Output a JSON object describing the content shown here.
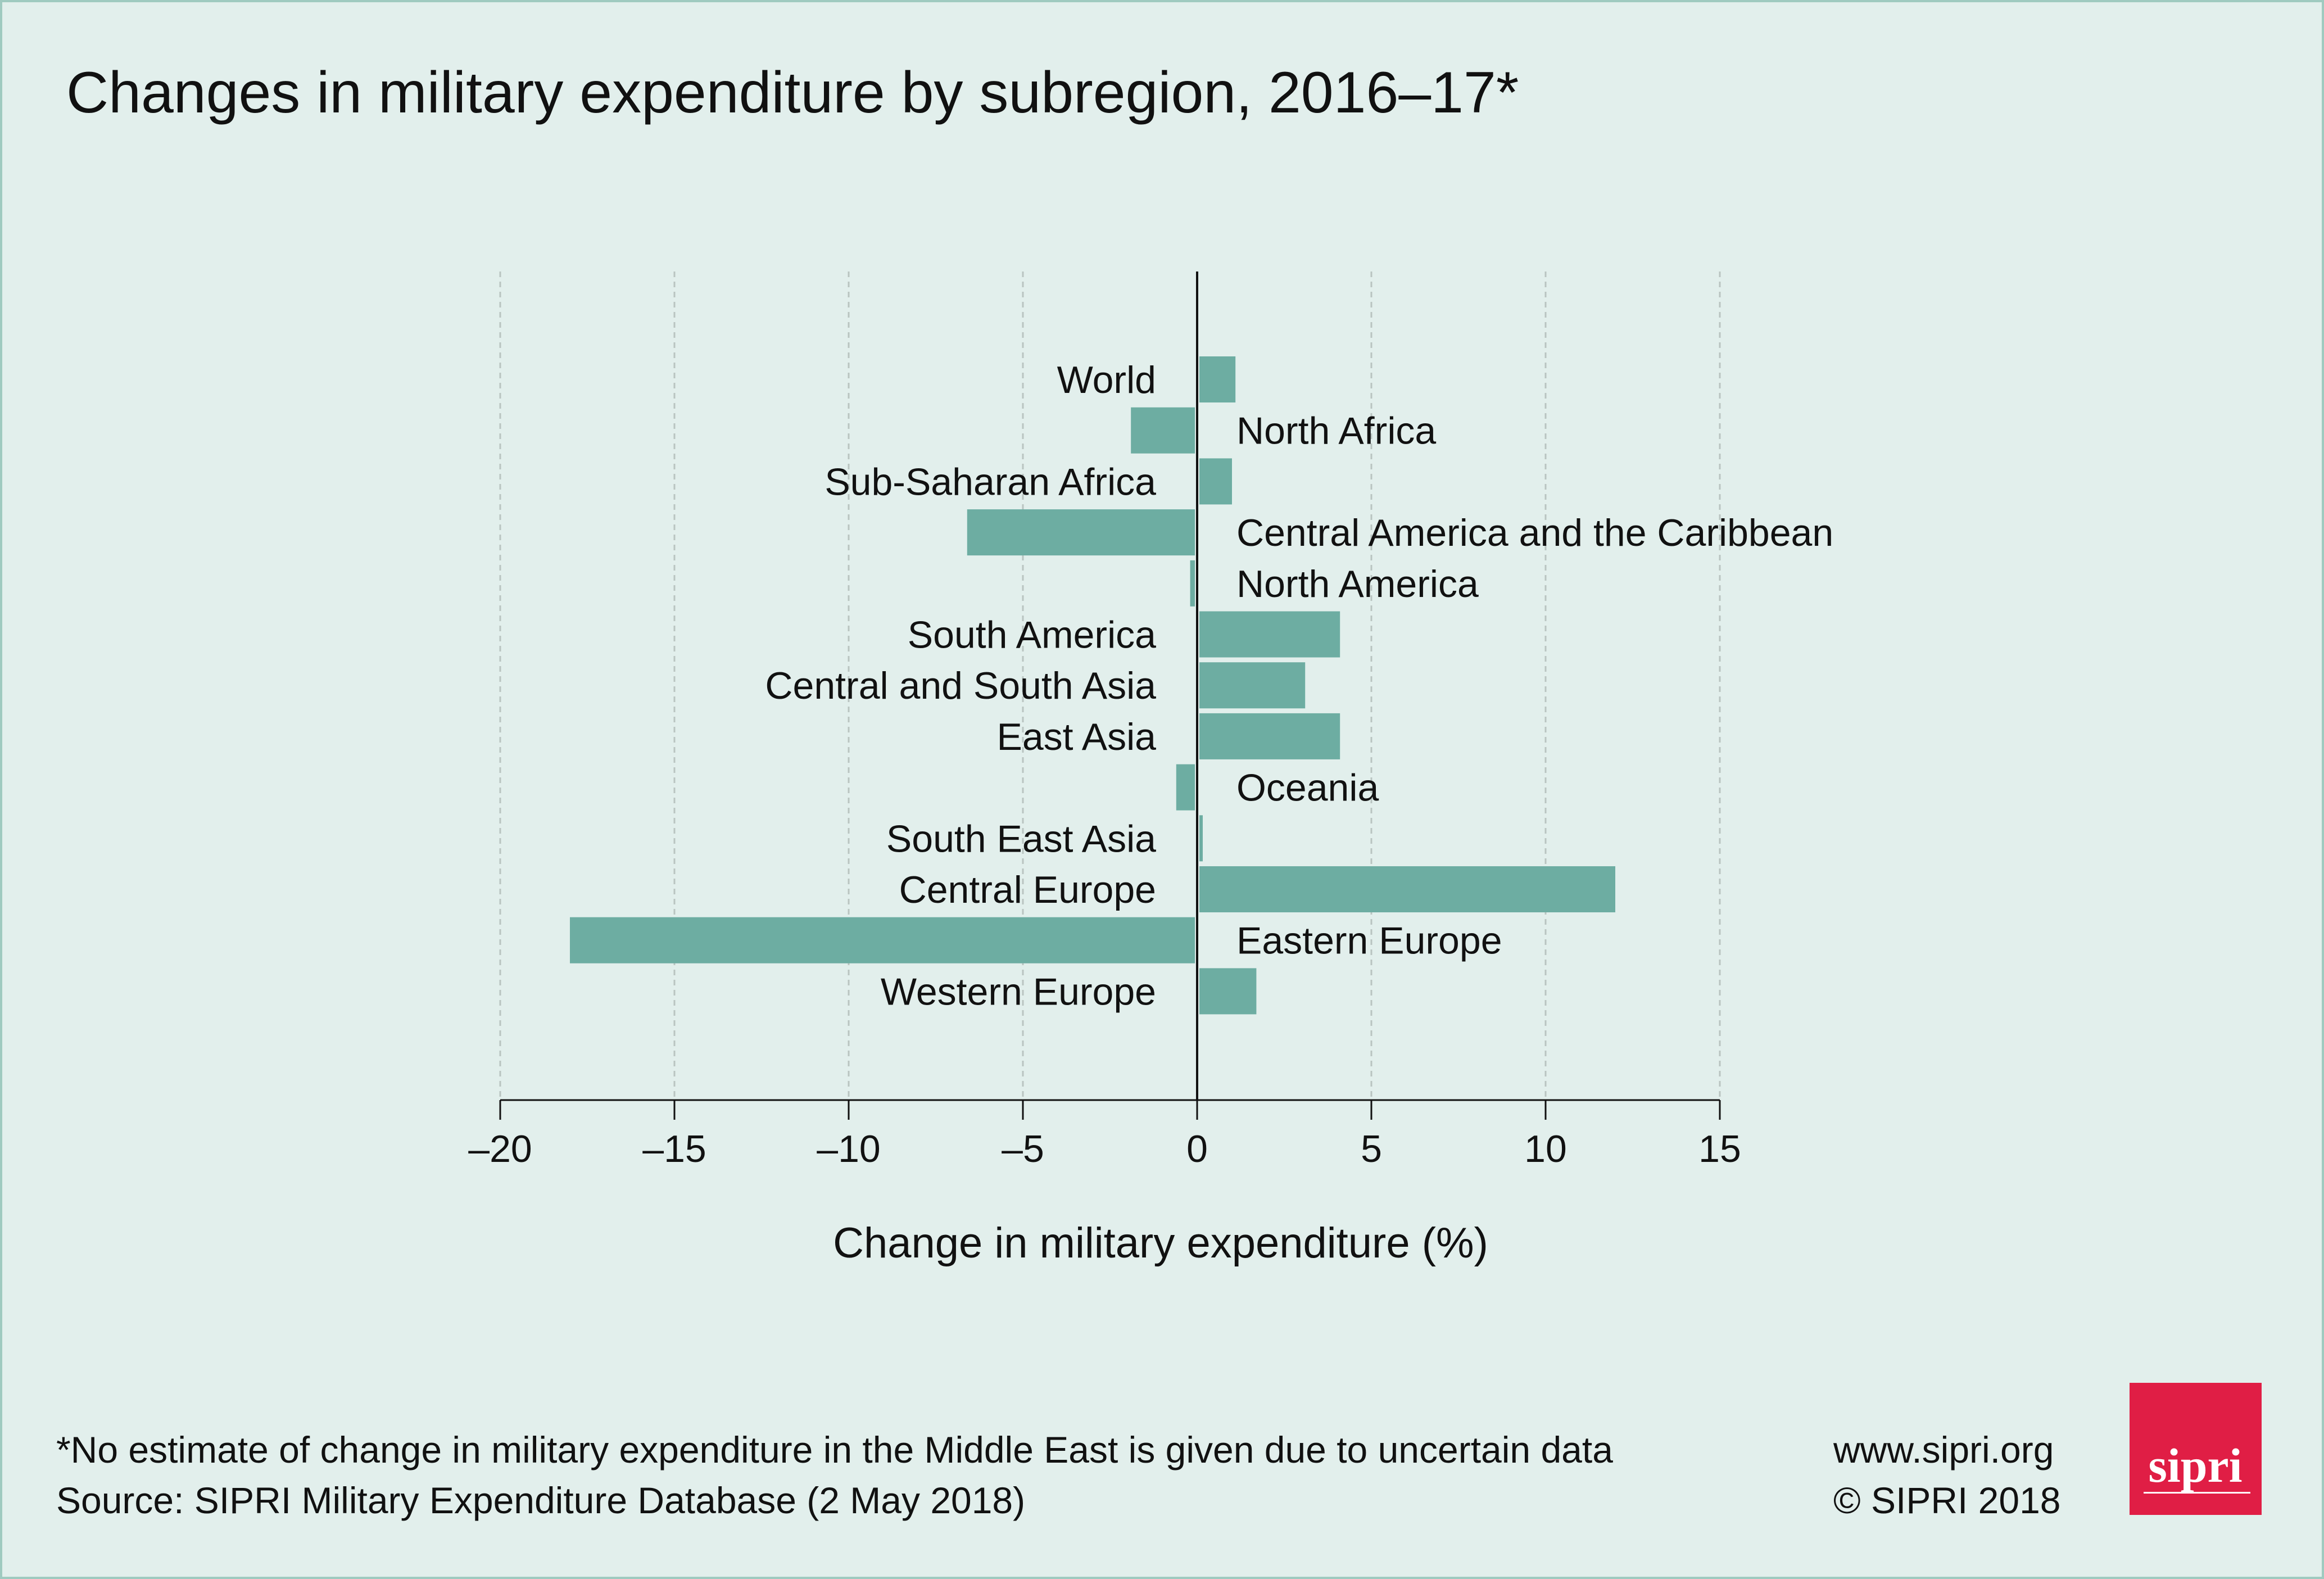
{
  "title": "Changes in military expenditure by subregion, 2016–17*",
  "colors": {
    "background": "#e2efec",
    "bar": "#6dada2",
    "logo": "#e01e45",
    "border": "#9fcac0"
  },
  "chart_data": {
    "type": "bar",
    "orientation": "horizontal",
    "title": "Changes in military expenditure by subregion, 2016–17*",
    "xlabel": "Change in military expenditure (%)",
    "ylabel": "",
    "xlim": [
      -20,
      15
    ],
    "xticks": [
      -20,
      -15,
      -10,
      -5,
      0,
      5,
      10,
      15
    ],
    "xtick_labels": [
      "–20",
      "–15",
      "–10",
      "–5",
      "0",
      "5",
      "10",
      "15"
    ],
    "grid": "vertical dashed",
    "categories": [
      "World",
      "North Africa",
      "Sub-Saharan Africa",
      "Central America and the Caribbean",
      "North America",
      "South America",
      "Central and South Asia",
      "East Asia",
      "Oceania",
      "South East Asia",
      "Central Europe",
      "Eastern Europe",
      "Western Europe"
    ],
    "values": [
      1.1,
      -1.9,
      1.0,
      -6.6,
      -0.2,
      4.1,
      3.1,
      4.1,
      -0.6,
      0.1,
      12.0,
      -18.0,
      1.7
    ]
  },
  "footer": {
    "note": "*No estimate of change in military expenditure in the Middle East is given due to uncertain data",
    "source": "Source: SIPRI Military Expenditure Database (2 May 2018)",
    "website": "www.sipri.org",
    "copyright": "© SIPRI 2018",
    "logo_text": "sipri"
  }
}
